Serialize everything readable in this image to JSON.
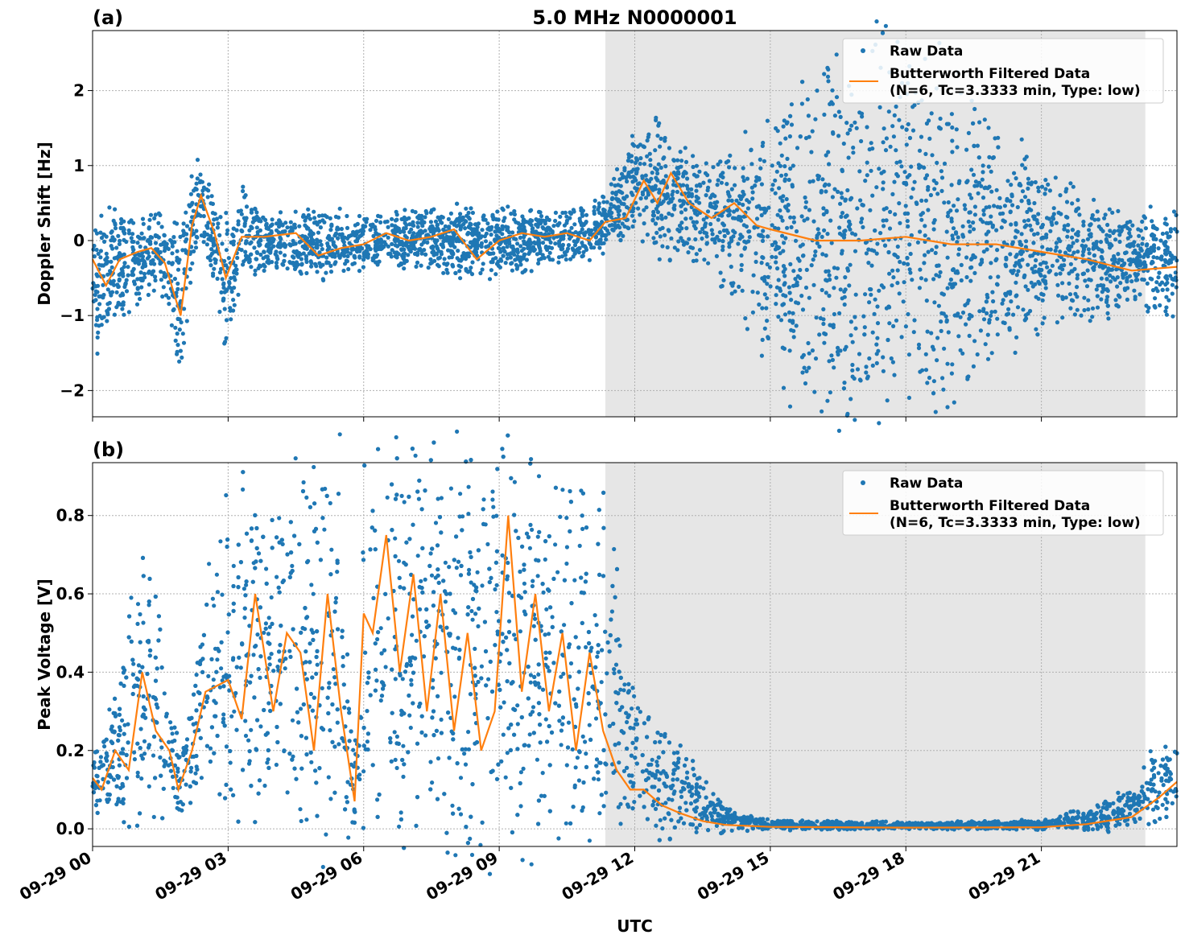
{
  "figure": {
    "title": "5.0 MHz N0000001",
    "xlabel": "UTC"
  },
  "chart_data": [
    {
      "type": "scatter",
      "panel_label": "(a)",
      "title": "5.0 MHz N0000001",
      "xlabel": "",
      "ylabel": "Doppler Shift [Hz]",
      "x_unit": "hours since 09-29 00 UTC",
      "xlim": [
        0,
        24
      ],
      "ylim": [
        -2.35,
        2.8
      ],
      "yticks": [
        -2,
        -1,
        0,
        1,
        2
      ],
      "ytick_labels": [
        "−2",
        "−1",
        "0",
        "1",
        "2"
      ],
      "grid": true,
      "shaded_region": {
        "x": [
          11.35,
          23.3
        ],
        "color": "#e6e6e6"
      },
      "legend": {
        "position": "top-right",
        "entries": [
          "Raw Data",
          "Butterworth Filtered Data\n(N=6, Tc=3.3333 min, Type: low)"
        ]
      },
      "series": [
        {
          "name": "Raw Data",
          "kind": "points",
          "color": "#1f77b4",
          "envelope_x": [
            0,
            0.5,
            1,
            1.5,
            1.95,
            2.2,
            2.4,
            2.7,
            2.95,
            3.3,
            4,
            5,
            6,
            7,
            8,
            9,
            10,
            11,
            11.4,
            12,
            12.5,
            13,
            13.5,
            14,
            14.5,
            15,
            16,
            17,
            18,
            19,
            20,
            21,
            22,
            23,
            24
          ],
          "envelope_hi": [
            0.3,
            0.25,
            0.2,
            0.25,
            0.1,
            0.8,
            1.0,
            0.4,
            0.1,
            0.6,
            0.3,
            0.35,
            0.25,
            0.3,
            0.35,
            0.35,
            0.35,
            0.4,
            0.6,
            1.3,
            1.5,
            1.1,
            0.9,
            1.0,
            1.2,
            1.3,
            1.8,
            2.1,
            2.2,
            1.9,
            1.2,
            0.8,
            0.5,
            0.2,
            0.3
          ],
          "envelope_lo": [
            -1.45,
            -0.9,
            -0.7,
            -0.5,
            -1.65,
            -0.3,
            0.1,
            -0.5,
            -1.3,
            -0.4,
            -0.35,
            -0.4,
            -0.3,
            -0.3,
            -0.35,
            -0.4,
            -0.25,
            -0.2,
            0.0,
            0.1,
            0.0,
            -0.1,
            -0.2,
            -0.4,
            -0.9,
            -1.4,
            -1.9,
            -2.1,
            -2.0,
            -1.85,
            -1.2,
            -1.0,
            -0.85,
            -0.8,
            -0.85
          ]
        },
        {
          "name": "Butterworth Filtered Data\n(N=6, Tc=3.3333 min, Type: low)",
          "kind": "line",
          "color": "#ff7f0e",
          "x": [
            0,
            0.3,
            0.6,
            1.0,
            1.3,
            1.6,
            1.95,
            2.2,
            2.4,
            2.7,
            2.95,
            3.3,
            3.8,
            4.5,
            5.0,
            5.5,
            6.0,
            6.5,
            7.0,
            7.5,
            8.0,
            8.5,
            9.0,
            9.5,
            10.0,
            10.5,
            11.0,
            11.35,
            11.8,
            12.2,
            12.5,
            12.8,
            13.2,
            13.7,
            14.2,
            14.7,
            15.0,
            16,
            17,
            18,
            19,
            20,
            21,
            22,
            23,
            24
          ],
          "y": [
            -0.25,
            -0.6,
            -0.25,
            -0.15,
            -0.1,
            -0.3,
            -1.0,
            0.2,
            0.6,
            0.1,
            -0.5,
            0.05,
            0.05,
            0.1,
            -0.2,
            -0.1,
            -0.05,
            0.1,
            0.0,
            0.05,
            0.15,
            -0.25,
            0.0,
            0.1,
            0.05,
            0.1,
            0.0,
            0.25,
            0.3,
            0.8,
            0.5,
            0.9,
            0.5,
            0.3,
            0.5,
            0.2,
            0.15,
            0.0,
            0.0,
            0.05,
            -0.05,
            -0.05,
            -0.15,
            -0.25,
            -0.4,
            -0.35
          ]
        }
      ]
    },
    {
      "type": "scatter",
      "panel_label": "(b)",
      "title": "",
      "xlabel": "UTC",
      "ylabel": "Peak Voltage [V]",
      "x_unit": "hours since 09-29 00 UTC",
      "xlim": [
        0,
        24
      ],
      "ylim": [
        -0.045,
        0.935
      ],
      "yticks": [
        0.0,
        0.2,
        0.4,
        0.6,
        0.8
      ],
      "ytick_labels": [
        "0.0",
        "0.2",
        "0.4",
        "0.6",
        "0.8"
      ],
      "xticks": [
        0,
        3,
        6,
        9,
        12,
        15,
        18,
        21
      ],
      "xtick_labels": [
        "09-29 00",
        "09-29 03",
        "09-29 06",
        "09-29 09",
        "09-29 12",
        "09-29 15",
        "09-29 18",
        "09-29 21"
      ],
      "grid": true,
      "shaded_region": {
        "x": [
          11.35,
          23.3
        ],
        "color": "#e6e6e6"
      },
      "legend": {
        "position": "top-right",
        "entries": [
          "Raw Data",
          "Butterworth Filtered Data\n(N=6, Tc=3.3333 min, Type: low)"
        ]
      },
      "series": [
        {
          "name": "Raw Data",
          "kind": "points",
          "color": "#1f77b4",
          "envelope_x": [
            0,
            0.5,
            1.0,
            1.3,
            1.8,
            2.0,
            2.5,
            3.0,
            3.5,
            4.0,
            4.5,
            5.0,
            5.5,
            5.8,
            6.0,
            6.5,
            7.0,
            7.5,
            8.0,
            8.5,
            9.0,
            9.5,
            10.0,
            10.5,
            11.0,
            11.4,
            11.8,
            12.2,
            12.6,
            13.0,
            13.5,
            14,
            15,
            18,
            21,
            22,
            23,
            23.6,
            24
          ],
          "envelope_hi": [
            0.2,
            0.3,
            0.67,
            0.6,
            0.25,
            0.2,
            0.6,
            0.75,
            0.85,
            0.82,
            0.88,
            0.88,
            0.85,
            0.2,
            0.88,
            0.88,
            0.85,
            0.88,
            0.85,
            0.85,
            0.88,
            0.89,
            0.85,
            0.87,
            0.84,
            0.82,
            0.38,
            0.3,
            0.25,
            0.2,
            0.12,
            0.05,
            0.02,
            0.015,
            0.02,
            0.05,
            0.1,
            0.2,
            0.22
          ],
          "envelope_lo": [
            0.03,
            0.06,
            0.1,
            0.1,
            0.06,
            0.05,
            0.15,
            0.12,
            0.08,
            0.1,
            0.1,
            0.05,
            0.02,
            0.01,
            0.08,
            0.05,
            0.05,
            0.08,
            0.03,
            0.02,
            0.03,
            0.05,
            0.06,
            0.05,
            0.05,
            0.05,
            0.03,
            0.02,
            0.01,
            0.005,
            0.002,
            0.0,
            0.0,
            0.0,
            0.0,
            0.0,
            0.01,
            0.03,
            0.05
          ]
        },
        {
          "name": "Butterworth Filtered Data\n(N=6, Tc=3.3333 min, Type: low)",
          "kind": "line",
          "color": "#ff7f0e",
          "x": [
            0,
            0.2,
            0.5,
            0.8,
            1.1,
            1.4,
            1.7,
            1.9,
            2.2,
            2.5,
            3.0,
            3.3,
            3.6,
            4.0,
            4.3,
            4.6,
            4.9,
            5.2,
            5.5,
            5.8,
            6.0,
            6.2,
            6.5,
            6.8,
            7.1,
            7.4,
            7.7,
            8.0,
            8.3,
            8.6,
            8.9,
            9.2,
            9.5,
            9.8,
            10.1,
            10.4,
            10.7,
            11.0,
            11.3,
            11.6,
            11.9,
            12.2,
            12.6,
            13.0,
            13.5,
            14,
            15,
            18,
            21,
            22,
            23,
            23.6,
            24
          ],
          "y": [
            0.13,
            0.1,
            0.2,
            0.15,
            0.4,
            0.25,
            0.2,
            0.1,
            0.2,
            0.35,
            0.38,
            0.28,
            0.6,
            0.3,
            0.5,
            0.45,
            0.2,
            0.6,
            0.3,
            0.07,
            0.55,
            0.5,
            0.75,
            0.4,
            0.65,
            0.3,
            0.6,
            0.25,
            0.5,
            0.2,
            0.3,
            0.8,
            0.35,
            0.6,
            0.3,
            0.5,
            0.2,
            0.45,
            0.25,
            0.15,
            0.1,
            0.1,
            0.06,
            0.04,
            0.02,
            0.01,
            0.005,
            0.003,
            0.004,
            0.012,
            0.03,
            0.08,
            0.12
          ]
        }
      ]
    }
  ],
  "colors": {
    "raw": "#1f77b4",
    "filtered": "#ff7f0e",
    "shade": "#e6e6e6",
    "grid": "#b0b0b0"
  }
}
